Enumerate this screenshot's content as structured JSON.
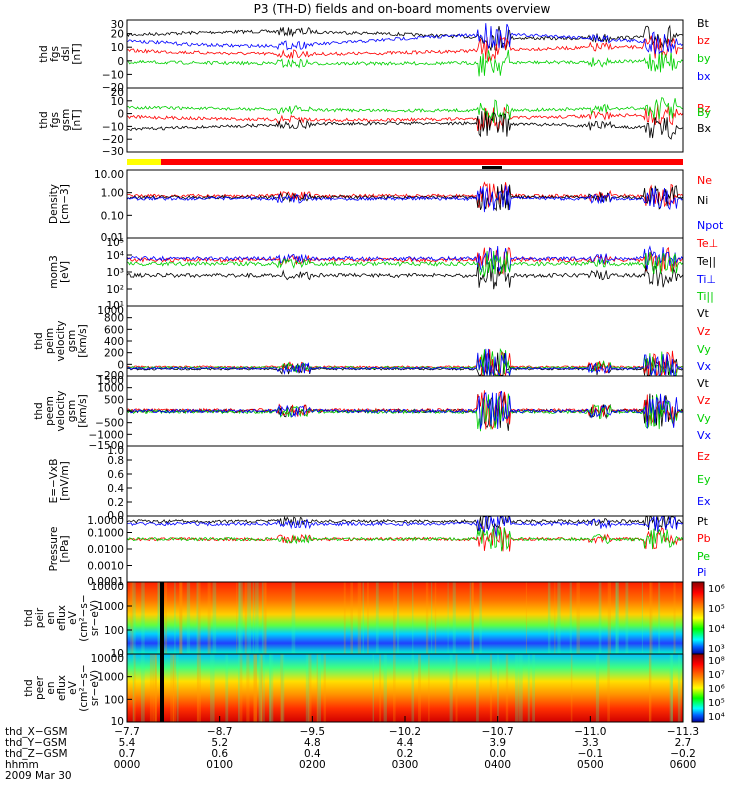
{
  "title": "P3 (TH-D) fields and on-board moments overview",
  "colors": {
    "black": "#000000",
    "red": "#ff0000",
    "green": "#00d000",
    "blue": "#0000ff",
    "yellow": "#ffff00"
  },
  "chart_data": [
    {
      "type": "line",
      "panel": "fgs_dsl",
      "ylabel": [
        "thd",
        "fgs",
        "dsl",
        "[nT]"
      ],
      "ylim": [
        -20,
        30
      ],
      "yticks": [
        "30",
        "20",
        "10",
        "0",
        "−10",
        "−20"
      ],
      "series": [
        {
          "name": "Bt",
          "color": "red-black"
        },
        {
          "name": "bz",
          "color": "red"
        },
        {
          "name": "by",
          "color": "green"
        },
        {
          "name": "bx",
          "color": "blue"
        }
      ]
    },
    {
      "type": "line",
      "panel": "fgs_gsm",
      "ylabel": [
        "thd",
        "fgs",
        "gsm",
        "[nT]"
      ],
      "ylim": [
        -35,
        20
      ],
      "yticks": [
        "20",
        "10",
        "0",
        "−10",
        "−20",
        "−30"
      ],
      "series": [
        {
          "name": "Bz",
          "color": "red"
        },
        {
          "name": "By",
          "color": "green"
        },
        {
          "name": "Bx",
          "color": "black"
        }
      ]
    },
    {
      "type": "line",
      "panel": "density",
      "ylabel": [
        "Density",
        "[cm−3]"
      ],
      "ylim": [
        0.01,
        10
      ],
      "log": true,
      "yticks": [
        "10.00",
        "1.00",
        "0.10",
        "0.01"
      ],
      "series": [
        {
          "name": "Ne",
          "color": "red"
        },
        {
          "name": "Ni",
          "color": "black"
        },
        {
          "name": "Npot",
          "color": "blue"
        }
      ]
    },
    {
      "type": "line",
      "panel": "temperature",
      "ylabel": [
        "mom3",
        "[eV]"
      ],
      "ylim": [
        10,
        100000
      ],
      "log": true,
      "yticks": [
        "10⁵",
        "10⁴",
        "10³",
        "10²",
        "10¹"
      ],
      "series": [
        {
          "name": "Te⊥",
          "color": "red"
        },
        {
          "name": "Te||",
          "color": "black"
        },
        {
          "name": "Ti⊥",
          "color": "blue"
        },
        {
          "name": "Ti||",
          "color": "green"
        }
      ]
    },
    {
      "type": "line",
      "panel": "peim_velocity",
      "ylabel": [
        "thd",
        "peim",
        "velocity",
        "gsm",
        "[km/s]"
      ],
      "ylim": [
        -200,
        1000
      ],
      "yticks": [
        "1000",
        "800",
        "600",
        "400",
        "200",
        "0",
        "−200"
      ],
      "series": [
        {
          "name": "Vt",
          "color": "black"
        },
        {
          "name": "Vz",
          "color": "red"
        },
        {
          "name": "Vy",
          "color": "green"
        },
        {
          "name": "Vx",
          "color": "blue"
        }
      ]
    },
    {
      "type": "line",
      "panel": "peem_velocity",
      "ylabel": [
        "thd",
        "peem",
        "velocity",
        "gsm",
        "[km/s]"
      ],
      "ylim": [
        -1500,
        1500
      ],
      "yticks": [
        "1500",
        "1000",
        "500",
        "0",
        "−500",
        "−1000",
        "−1500"
      ],
      "series": [
        {
          "name": "Vt",
          "color": "black"
        },
        {
          "name": "Vz",
          "color": "red"
        },
        {
          "name": "Vy",
          "color": "green"
        },
        {
          "name": "Vx",
          "color": "blue"
        }
      ]
    },
    {
      "type": "line",
      "panel": "efield",
      "ylabel": [
        "E=−VxB",
        "[mV/m]"
      ],
      "ylim": [
        0,
        1
      ],
      "yticks": [
        "1.0",
        "0.8",
        "0.6",
        "0.4",
        "0.2",
        "0.0"
      ],
      "series": [
        {
          "name": "Ez",
          "color": "red"
        },
        {
          "name": "Ey",
          "color": "green"
        },
        {
          "name": "Ex",
          "color": "blue"
        }
      ]
    },
    {
      "type": "line",
      "panel": "pressure",
      "ylabel": [
        "Pressure",
        "[nPa]"
      ],
      "ylim": [
        0.0001,
        1
      ],
      "log": true,
      "yticks": [
        "1.0000",
        "0.1000",
        "0.0100",
        "0.0010",
        "0.0001"
      ],
      "series": [
        {
          "name": "Pt",
          "color": "black"
        },
        {
          "name": "Pb",
          "color": "red"
        },
        {
          "name": "Pe",
          "color": "green"
        },
        {
          "name": "Pi",
          "color": "blue"
        }
      ]
    },
    {
      "type": "heatmap",
      "panel": "peir_eflux",
      "ylabel": [
        "thd",
        "peir",
        "en",
        "eflux",
        "eV",
        "(cm²−s−",
        "sr−eV)"
      ],
      "yticks": [
        "10000",
        "1000",
        "100",
        "10"
      ],
      "colorbar_ticks": [
        "10⁶",
        "10⁵",
        "10⁴",
        "10³"
      ]
    },
    {
      "type": "heatmap",
      "panel": "peer_eflux",
      "ylabel": [
        "thd",
        "peer",
        "en",
        "eflux",
        "eV",
        "(cm²−s−",
        "sr−eV)"
      ],
      "yticks": [
        "10000",
        "1000",
        "100",
        "10"
      ],
      "colorbar_ticks": [
        "10⁸",
        "10⁷",
        "10⁶",
        "10⁵",
        "10⁴"
      ]
    }
  ],
  "xaxis": {
    "rows": [
      {
        "label": "thd_X−GSM",
        "values": [
          "−7.7",
          "−8.7",
          "−9.5",
          "−10.2",
          "−10.7",
          "−11.0",
          "−11.3"
        ]
      },
      {
        "label": "thd_Y−GSM",
        "values": [
          "5.4",
          "5.2",
          "4.8",
          "4.4",
          "3.9",
          "3.3",
          "2.7"
        ]
      },
      {
        "label": "thd_Z−GSM",
        "values": [
          "0.7",
          "0.6",
          "0.4",
          "0.2",
          "0.0",
          "−0.1",
          "−0.2"
        ]
      },
      {
        "label": "hhmm",
        "values": [
          "0000",
          "0100",
          "0200",
          "0300",
          "0400",
          "0500",
          "0600"
        ]
      }
    ],
    "date": "2009 Mar 30"
  }
}
